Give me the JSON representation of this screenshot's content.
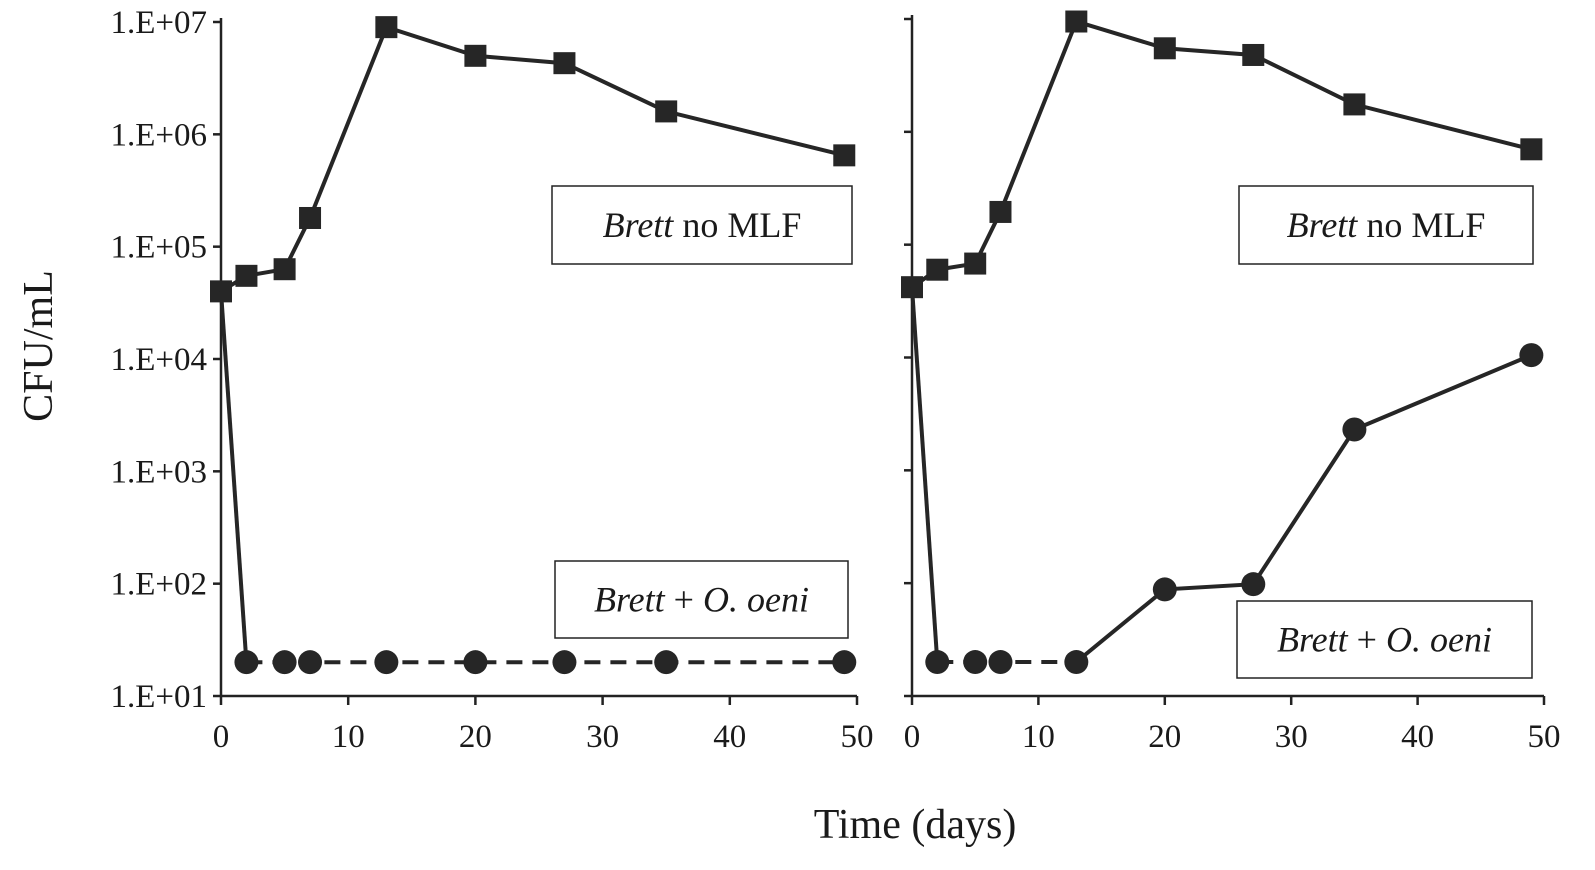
{
  "chart_data": [
    {
      "type": "line",
      "panel": "left",
      "xlabel": "",
      "ylabel": "CFU/mL",
      "xlim": [
        0,
        50
      ],
      "ylim": [
        10,
        10000000
      ],
      "y_scale": "log",
      "x_ticks": [
        "0",
        "10",
        "20",
        "30",
        "40",
        "50"
      ],
      "y_ticks": [
        "1.E+07",
        "1.E+06",
        "1.E+05",
        "1.E+04",
        "1.E+03",
        "1.E+02",
        "1.E+01"
      ],
      "grid": false,
      "series": [
        {
          "name": "Brett no MLF",
          "name_parts": [
            "Brett",
            " no MLF"
          ],
          "marker": "square",
          "line_style": "solid",
          "x": [
            0,
            2,
            5,
            7,
            13,
            20,
            27,
            35,
            49
          ],
          "y": [
            40000,
            55000,
            63000,
            180000,
            9000000,
            5000000,
            4300000,
            1600000,
            650000
          ]
        },
        {
          "name": "Brett + O. oeni",
          "name_parts": [
            "Brett",
            " + ",
            "O. oeni"
          ],
          "marker": "circle",
          "segments": [
            {
              "line_style": "solid",
              "x": [
                0,
                2
              ],
              "y": [
                40000,
                20
              ]
            },
            {
              "line_style": "dashed",
              "x": [
                2,
                5,
                7,
                13,
                20,
                27,
                35,
                49
              ],
              "y": [
                20,
                20,
                20,
                20,
                20,
                20,
                20,
                20
              ]
            }
          ],
          "x": [
            2,
            5,
            7,
            13,
            20,
            27,
            35,
            49
          ],
          "y": [
            20,
            20,
            20,
            20,
            20,
            20,
            20,
            20
          ]
        }
      ]
    },
    {
      "type": "line",
      "panel": "right",
      "xlabel": "",
      "ylabel": "",
      "xlim": [
        0,
        50
      ],
      "ylim": [
        10,
        10000000
      ],
      "y_scale": "log",
      "x_ticks": [
        "0",
        "10",
        "20",
        "30",
        "40",
        "50"
      ],
      "grid": false,
      "series": [
        {
          "name": "Brett no MLF",
          "name_parts": [
            "Brett",
            " no MLF"
          ],
          "marker": "square",
          "line_style": "solid",
          "x": [
            0,
            2,
            5,
            7,
            13,
            20,
            27,
            35,
            49
          ],
          "y": [
            42000,
            60000,
            68000,
            195000,
            9500000,
            5500000,
            4800000,
            1750000,
            700000
          ]
        },
        {
          "name": "Brett + O. oeni",
          "name_parts": [
            "Brett",
            " + ",
            "O. oeni"
          ],
          "marker": "circle",
          "segments": [
            {
              "line_style": "solid",
              "x": [
                0,
                2
              ],
              "y": [
                42000,
                20
              ]
            },
            {
              "line_style": "dashed",
              "x": [
                2,
                5,
                7,
                13
              ],
              "y": [
                20,
                20,
                20,
                20
              ]
            },
            {
              "line_style": "solid",
              "x": [
                13,
                20,
                27,
                35,
                49
              ],
              "y": [
                20,
                88,
                98,
                2300,
                10500
              ]
            }
          ],
          "x": [
            2,
            5,
            7,
            13,
            20,
            27,
            35,
            49
          ],
          "y": [
            20,
            20,
            20,
            20,
            88,
            98,
            2300,
            10500
          ]
        }
      ]
    }
  ],
  "shared_xlabel": "Time (days)"
}
